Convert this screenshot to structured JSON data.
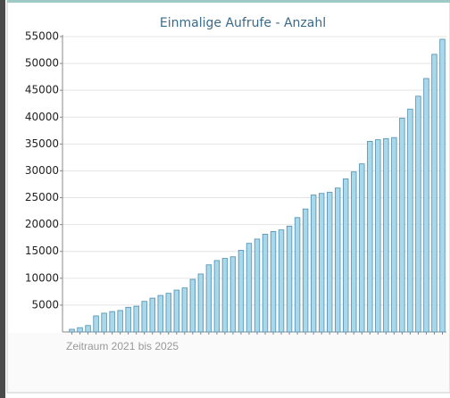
{
  "chart_data": {
    "type": "bar",
    "title": "Einmalige Aufrufe - Anzahl",
    "caption": "Zeitraum 2021 bis 2025",
    "categories": [
      null,
      null,
      null,
      null,
      null,
      null,
      null,
      null,
      null,
      null,
      null,
      null,
      null,
      null,
      null,
      null,
      null,
      null,
      null,
      null,
      null,
      null,
      null,
      null,
      null,
      null,
      null,
      null,
      null,
      null,
      null,
      null,
      null,
      null,
      null,
      null,
      null,
      null,
      null,
      null,
      null,
      null,
      null,
      null,
      null,
      null,
      null
    ],
    "values": [
      500,
      800,
      1200,
      3000,
      3500,
      3800,
      4000,
      4600,
      4800,
      5700,
      6300,
      6800,
      7200,
      7800,
      8200,
      9800,
      10800,
      12500,
      13300,
      13700,
      14000,
      15200,
      16500,
      17300,
      18200,
      18700,
      19000,
      19700,
      21300,
      22900,
      25500,
      25800,
      26000,
      26800,
      28500,
      29800,
      31300,
      35500,
      35800,
      36000,
      36200,
      39800,
      41500,
      43900,
      47200,
      51700,
      54500
    ],
    "color": "#a8d8ea",
    "ylim": [
      0,
      55000
    ],
    "yticks": [
      5000,
      10000,
      15000,
      20000,
      25000,
      30000,
      35000,
      40000,
      45000,
      50000,
      55000
    ],
    "grid": true
  }
}
